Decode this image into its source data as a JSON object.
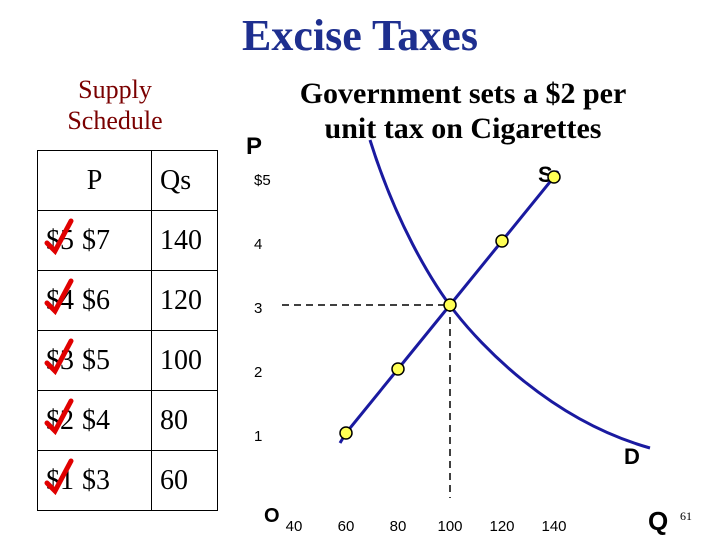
{
  "title": "Excise Taxes",
  "supply_schedule": {
    "label_line1": "Supply",
    "label_line2": "Schedule",
    "headers": {
      "p": "P",
      "qs": "Qs"
    },
    "rows": [
      {
        "old_price": "$5",
        "new_price": "$7",
        "qs": "140"
      },
      {
        "old_price": "$4",
        "new_price": "$6",
        "qs": "120"
      },
      {
        "old_price": "$3",
        "new_price": "$5",
        "qs": "100"
      },
      {
        "old_price": "$2",
        "new_price": "$4",
        "qs": "80"
      },
      {
        "old_price": "$1",
        "new_price": "$3",
        "qs": "60"
      }
    ]
  },
  "headline_line1": "Government sets a $2 per",
  "headline_line2": "unit tax on Cigarettes",
  "graph": {
    "p_axis_label": "P",
    "q_axis_label": "Q",
    "origin_label": "O",
    "supply_label": "S",
    "demand_label": "D",
    "y_ticks": [
      {
        "value": 5,
        "label": "$5"
      },
      {
        "value": 4,
        "label": "4"
      },
      {
        "value": 3,
        "label": "3"
      },
      {
        "value": 2,
        "label": "2"
      },
      {
        "value": 1,
        "label": "1"
      }
    ],
    "x_ticks": [
      {
        "value": 40,
        "label": "40"
      },
      {
        "value": 60,
        "label": "60"
      },
      {
        "value": 80,
        "label": "80"
      },
      {
        "value": 100,
        "label": "100"
      },
      {
        "value": 120,
        "label": "120"
      },
      {
        "value": 140,
        "label": "140"
      }
    ],
    "supply_points": [
      {
        "q": 60,
        "p": 1
      },
      {
        "q": 80,
        "p": 2
      },
      {
        "q": 100,
        "p": 3
      },
      {
        "q": 120,
        "p": 4
      },
      {
        "q": 140,
        "p": 5
      }
    ],
    "equilibrium": {
      "q": 100,
      "p": 3
    },
    "colors": {
      "curve": "#1a1aa0",
      "point": "#ffff55",
      "strike": "#e00000",
      "title": "#1e2f8f",
      "schedule_label": "#7a0000"
    }
  },
  "page_number": "61"
}
